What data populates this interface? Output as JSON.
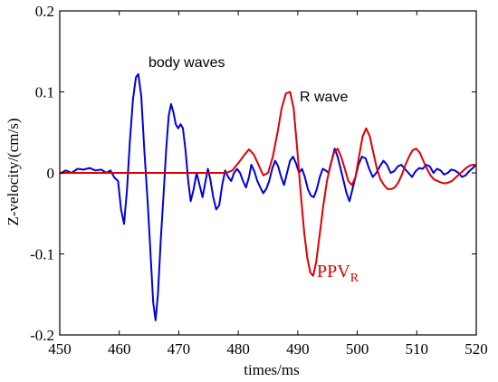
{
  "chart_data": {
    "type": "line",
    "title": "",
    "xlabel": "times/ms",
    "ylabel": "Z-velocity/(cm/s)",
    "xlim": [
      450,
      520
    ],
    "ylim": [
      -0.2,
      0.2
    ],
    "xticks": [
      450,
      460,
      470,
      480,
      490,
      500,
      510,
      520
    ],
    "yticks": [
      0.2,
      0.1,
      0,
      -0.1,
      -0.2
    ],
    "xtick_labels": [
      "450",
      "460",
      "470",
      "480",
      "490",
      "500",
      "510",
      "520"
    ],
    "ytick_labels": [
      "0.2",
      "0.1",
      "0",
      "-0.1",
      "-0.2"
    ],
    "grid": false,
    "annotations": {
      "body_waves": "body waves",
      "r_wave": "R wave",
      "ppv_main": "PPV",
      "ppv_sub": "R"
    },
    "series": [
      {
        "color": "#0000dd",
        "x": [
          450,
          451,
          452,
          453,
          454,
          455,
          456,
          457,
          457.8,
          458.5,
          459.2,
          459.8,
          460.3,
          460.8,
          461.3,
          461.8,
          462.3,
          462.8,
          463.2,
          463.7,
          464.2,
          464.8,
          465.3,
          465.7,
          466.1,
          466.5,
          467.0,
          467.5,
          467.9,
          468.3,
          468.7,
          469.1,
          469.5,
          469.9,
          470.3,
          470.7,
          471.1,
          471.6,
          472.0,
          472.5,
          473.0,
          473.5,
          474.0,
          474.5,
          474.9,
          475.3,
          475.8,
          476.3,
          476.8,
          477.3,
          477.8,
          478.3,
          478.8,
          479.3,
          479.8,
          480.3,
          480.8,
          481.3,
          481.8,
          482.2,
          482.7,
          483.2,
          483.7,
          484.2,
          484.7,
          485.2,
          485.7,
          486.2,
          486.7,
          487.2,
          487.7,
          488.2,
          488.7,
          489.2,
          489.7,
          490.2,
          490.7,
          491.2,
          491.7,
          492.2,
          492.7,
          493.2,
          493.7,
          494.2,
          494.7,
          495.2,
          495.7,
          496.2,
          496.7,
          497.2,
          497.7,
          498.2,
          498.7,
          499.2,
          499.7,
          500.2,
          500.8,
          501.4,
          502.0,
          502.6,
          503.2,
          503.8,
          504.4,
          505.0,
          505.6,
          506.2,
          506.8,
          507.4,
          508.0,
          508.6,
          509.2,
          509.8,
          510.4,
          511.0,
          511.6,
          512.2,
          512.8,
          513.4,
          514.0,
          514.6,
          515.2,
          515.8,
          516.4,
          517.0,
          517.6,
          518.2,
          518.8,
          519.4,
          520
        ],
        "y": [
          -0.001,
          0.003,
          0.0,
          0.005,
          0.004,
          0.006,
          0.003,
          0.004,
          0.0,
          0.003,
          -0.006,
          -0.01,
          -0.045,
          -0.063,
          -0.02,
          0.04,
          0.09,
          0.118,
          0.122,
          0.095,
          0.03,
          -0.04,
          -0.105,
          -0.16,
          -0.182,
          -0.15,
          -0.08,
          -0.02,
          0.03,
          0.07,
          0.085,
          0.075,
          0.06,
          0.055,
          0.06,
          0.055,
          0.03,
          -0.01,
          -0.035,
          -0.02,
          0.0,
          -0.015,
          -0.03,
          -0.01,
          0.005,
          -0.008,
          -0.03,
          -0.045,
          -0.04,
          -0.015,
          0.003,
          -0.005,
          -0.01,
          0.0,
          0.005,
          0.0,
          -0.01,
          -0.018,
          -0.005,
          0.01,
          0.002,
          -0.01,
          -0.018,
          -0.025,
          -0.02,
          -0.01,
          0.005,
          0.015,
          0.008,
          -0.005,
          -0.015,
          0.0,
          0.015,
          0.02,
          0.012,
          0.0,
          0.005,
          -0.005,
          -0.02,
          -0.028,
          -0.03,
          -0.02,
          -0.005,
          0.005,
          0.003,
          0.0,
          0.015,
          0.03,
          0.02,
          0.005,
          -0.01,
          -0.025,
          -0.035,
          -0.02,
          -0.005,
          0.01,
          0.02,
          0.018,
          0.005,
          -0.005,
          0.0,
          0.008,
          0.015,
          0.01,
          0.0,
          0.002,
          0.008,
          0.01,
          0.005,
          0.0,
          -0.005,
          0.002,
          0.006,
          0.005,
          0.01,
          0.008,
          0.0,
          0.005,
          0.003,
          -0.002,
          0.0,
          0.004,
          0.003,
          0.0,
          -0.005,
          -0.003,
          0.002,
          0.006,
          0.01
        ]
      },
      {
        "color": "#e00000",
        "x": [
          450,
          478.0,
          479.0,
          480.0,
          481.0,
          481.8,
          482.6,
          483.4,
          484.2,
          485.0,
          485.8,
          486.6,
          487.3,
          488.0,
          488.7,
          489.3,
          489.9,
          490.5,
          491.1,
          491.6,
          492.1,
          492.6,
          493.1,
          493.7,
          494.3,
          494.9,
          495.5,
          496.1,
          496.7,
          497.3,
          497.9,
          498.5,
          499.1,
          499.7,
          500.3,
          500.9,
          501.5,
          502.1,
          502.7,
          503.3,
          503.9,
          504.5,
          505.1,
          505.7,
          506.3,
          506.9,
          507.5,
          508.1,
          508.7,
          509.3,
          509.9,
          510.5,
          511.1,
          511.7,
          512.3,
          512.9,
          513.5,
          514.1,
          514.7,
          515.3,
          515.9,
          516.5,
          517.1,
          517.7,
          518.3,
          518.9,
          519.5,
          520
        ],
        "y": [
          0.0,
          0.0,
          0.003,
          0.012,
          0.022,
          0.029,
          0.023,
          0.01,
          -0.003,
          0.0,
          0.02,
          0.05,
          0.08,
          0.098,
          0.1,
          0.08,
          0.03,
          -0.025,
          -0.075,
          -0.105,
          -0.123,
          -0.127,
          -0.11,
          -0.075,
          -0.04,
          -0.01,
          0.01,
          0.025,
          0.03,
          0.02,
          0.005,
          -0.01,
          -0.015,
          -0.005,
          0.02,
          0.045,
          0.055,
          0.045,
          0.025,
          0.005,
          -0.008,
          -0.015,
          -0.02,
          -0.02,
          -0.018,
          -0.012,
          -0.002,
          0.01,
          0.02,
          0.028,
          0.03,
          0.025,
          0.015,
          0.005,
          -0.003,
          -0.008,
          -0.01,
          -0.012,
          -0.013,
          -0.012,
          -0.01,
          -0.006,
          -0.002,
          0.002,
          0.006,
          0.009,
          0.01,
          0.01
        ]
      }
    ]
  }
}
